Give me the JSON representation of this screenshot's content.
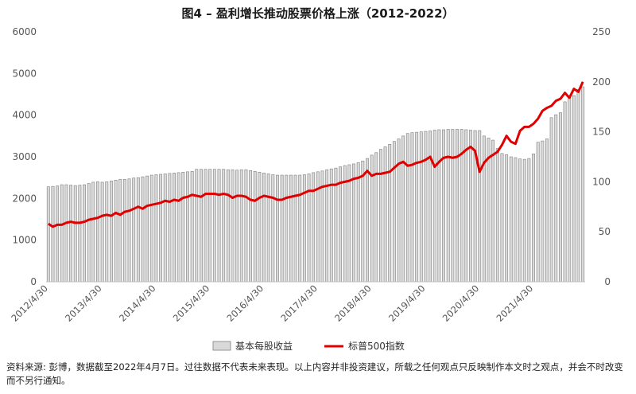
{
  "chart_data": {
    "type": "bar+line",
    "title": "图4 – 盈利增长推动股票价格上涨（2012-2022）",
    "xlabel": "",
    "ylabel_left": "",
    "ylabel_right": "",
    "ylim_left": [
      0,
      6000
    ],
    "ylim_right": [
      0,
      250
    ],
    "yticks_left": [
      "0",
      "1000",
      "2000",
      "3000",
      "4000",
      "5000",
      "6000"
    ],
    "yticks_right": [
      "0",
      "50",
      "100",
      "150",
      "200",
      "250"
    ],
    "x_tick_labels": [
      "2012/4/30",
      "2013/4/30",
      "2014/4/30",
      "2015/4/30",
      "2016/4/30",
      "2017/4/30",
      "2018/4/30",
      "2019/4/30",
      "2020/4/30",
      "2021/4/30"
    ],
    "x_start": "2012-04",
    "x_end": "2022-03",
    "grid": false,
    "legend_position": "bottom",
    "colors": {
      "bar_fill": "#d9d9d9",
      "bar_stroke": "#7f7f7f",
      "line": "#e00000",
      "axis": "#bfbfbf"
    },
    "series": [
      {
        "name": "基本每股收益",
        "type": "bar",
        "axis": "left",
        "dates": [
          "2012-04",
          "2012-05",
          "2012-06",
          "2012-07",
          "2012-08",
          "2012-09",
          "2012-10",
          "2012-11",
          "2012-12",
          "2013-01",
          "2013-02",
          "2013-03",
          "2013-04",
          "2013-05",
          "2013-06",
          "2013-07",
          "2013-08",
          "2013-09",
          "2013-10",
          "2013-11",
          "2013-12",
          "2014-01",
          "2014-02",
          "2014-03",
          "2014-04",
          "2014-05",
          "2014-06",
          "2014-07",
          "2014-08",
          "2014-09",
          "2014-10",
          "2014-11",
          "2014-12",
          "2015-01",
          "2015-02",
          "2015-03",
          "2015-04",
          "2015-05",
          "2015-06",
          "2015-07",
          "2015-08",
          "2015-09",
          "2015-10",
          "2015-11",
          "2015-12",
          "2016-01",
          "2016-02",
          "2016-03",
          "2016-04",
          "2016-05",
          "2016-06",
          "2016-07",
          "2016-08",
          "2016-09",
          "2016-10",
          "2016-11",
          "2016-12",
          "2017-01",
          "2017-02",
          "2017-03",
          "2017-04",
          "2017-05",
          "2017-06",
          "2017-07",
          "2017-08",
          "2017-09",
          "2017-10",
          "2017-11",
          "2017-12",
          "2018-01",
          "2018-02",
          "2018-03",
          "2018-04",
          "2018-05",
          "2018-06",
          "2018-07",
          "2018-08",
          "2018-09",
          "2018-10",
          "2018-11",
          "2018-12",
          "2019-01",
          "2019-02",
          "2019-03",
          "2019-04",
          "2019-05",
          "2019-06",
          "2019-07",
          "2019-08",
          "2019-09",
          "2019-10",
          "2019-11",
          "2019-12",
          "2020-01",
          "2020-02",
          "2020-03",
          "2020-04",
          "2020-05",
          "2020-06",
          "2020-07",
          "2020-08",
          "2020-09",
          "2020-10",
          "2020-11",
          "2020-12",
          "2021-01",
          "2021-02",
          "2021-03",
          "2021-04",
          "2021-05",
          "2021-06",
          "2021-07",
          "2021-08",
          "2021-09",
          "2021-10",
          "2021-11",
          "2021-12",
          "2022-01",
          "2022-02",
          "2022-03"
        ],
        "values": [
          2280,
          2290,
          2300,
          2330,
          2330,
          2320,
          2310,
          2320,
          2330,
          2360,
          2390,
          2400,
          2390,
          2400,
          2420,
          2440,
          2460,
          2460,
          2470,
          2490,
          2500,
          2520,
          2540,
          2560,
          2570,
          2580,
          2590,
          2600,
          2610,
          2620,
          2630,
          2640,
          2650,
          2700,
          2700,
          2700,
          2700,
          2700,
          2700,
          2700,
          2690,
          2690,
          2680,
          2690,
          2690,
          2670,
          2650,
          2630,
          2610,
          2590,
          2570,
          2560,
          2560,
          2560,
          2560,
          2560,
          2560,
          2570,
          2590,
          2620,
          2640,
          2660,
          2690,
          2710,
          2730,
          2760,
          2790,
          2810,
          2830,
          2860,
          2900,
          2960,
          3040,
          3100,
          3180,
          3240,
          3300,
          3370,
          3430,
          3500,
          3560,
          3580,
          3590,
          3600,
          3610,
          3620,
          3640,
          3650,
          3650,
          3660,
          3660,
          3660,
          3660,
          3650,
          3640,
          3630,
          3630,
          3500,
          3450,
          3400,
          3200,
          3080,
          3050,
          3000,
          2980,
          2950,
          2940,
          2960,
          3070,
          3350,
          3380,
          3430,
          3940,
          4010,
          4060,
          4320,
          4400,
          4470,
          4620,
          4680
        ]
      },
      {
        "name": "标普500指数",
        "type": "line",
        "axis": "right",
        "dates": [
          "2012-04",
          "2012-05",
          "2012-06",
          "2012-07",
          "2012-08",
          "2012-09",
          "2012-10",
          "2012-11",
          "2012-12",
          "2013-01",
          "2013-02",
          "2013-03",
          "2013-04",
          "2013-05",
          "2013-06",
          "2013-07",
          "2013-08",
          "2013-09",
          "2013-10",
          "2013-11",
          "2013-12",
          "2014-01",
          "2014-02",
          "2014-03",
          "2014-04",
          "2014-05",
          "2014-06",
          "2014-07",
          "2014-08",
          "2014-09",
          "2014-10",
          "2014-11",
          "2014-12",
          "2015-01",
          "2015-02",
          "2015-03",
          "2015-04",
          "2015-05",
          "2015-06",
          "2015-07",
          "2015-08",
          "2015-09",
          "2015-10",
          "2015-11",
          "2015-12",
          "2016-01",
          "2016-02",
          "2016-03",
          "2016-04",
          "2016-05",
          "2016-06",
          "2016-07",
          "2016-08",
          "2016-09",
          "2016-10",
          "2016-11",
          "2016-12",
          "2017-01",
          "2017-02",
          "2017-03",
          "2017-04",
          "2017-05",
          "2017-06",
          "2017-07",
          "2017-08",
          "2017-09",
          "2017-10",
          "2017-11",
          "2017-12",
          "2018-01",
          "2018-02",
          "2018-03",
          "2018-04",
          "2018-05",
          "2018-06",
          "2018-07",
          "2018-08",
          "2018-09",
          "2018-10",
          "2018-11",
          "2018-12",
          "2019-01",
          "2019-02",
          "2019-03",
          "2019-04",
          "2019-05",
          "2019-06",
          "2019-07",
          "2019-08",
          "2019-09",
          "2019-10",
          "2019-11",
          "2019-12",
          "2020-01",
          "2020-02",
          "2020-03",
          "2020-04",
          "2020-05",
          "2020-06",
          "2020-07",
          "2020-08",
          "2020-09",
          "2020-10",
          "2020-11",
          "2020-12",
          "2021-01",
          "2021-02",
          "2021-03",
          "2021-04",
          "2021-05",
          "2021-06",
          "2021-07",
          "2021-08",
          "2021-09",
          "2021-10",
          "2021-11",
          "2021-12",
          "2022-01",
          "2022-02",
          "2022-03"
        ],
        "values": [
          58,
          55,
          57,
          57,
          59,
          60,
          59,
          59,
          60,
          62,
          63,
          64,
          66,
          67,
          66,
          69,
          67,
          70,
          71,
          73,
          75,
          73,
          76,
          77,
          78,
          79,
          81,
          80,
          82,
          81,
          84,
          85,
          87,
          86,
          85,
          88,
          88,
          88,
          87,
          88,
          87,
          84,
          86,
          86,
          85,
          82,
          81,
          84,
          86,
          85,
          84,
          82,
          82,
          84,
          85,
          86,
          87,
          89,
          91,
          91,
          93,
          95,
          96,
          97,
          97,
          99,
          100,
          101,
          103,
          104,
          106,
          111,
          106,
          108,
          108,
          109,
          110,
          114,
          118,
          120,
          116,
          117,
          119,
          120,
          122,
          125,
          115,
          120,
          124,
          125,
          124,
          125,
          128,
          132,
          135,
          131,
          110,
          119,
          124,
          127,
          130,
          137,
          146,
          140,
          138,
          151,
          155,
          155,
          158,
          163,
          171,
          174,
          176,
          181,
          183,
          189,
          184,
          193,
          190,
          200
        ]
      }
    ]
  },
  "legend": {
    "bar_label": "基本每股收益",
    "line_label": "标普500指数"
  },
  "footnote": "资料来源: 彭博，数据截至2022年4月7日。过往数据不代表未来表现。以上内容并非投资建议，所载之任何观点只反映制作本文时之观点，并会不时改变而不另行通知。"
}
